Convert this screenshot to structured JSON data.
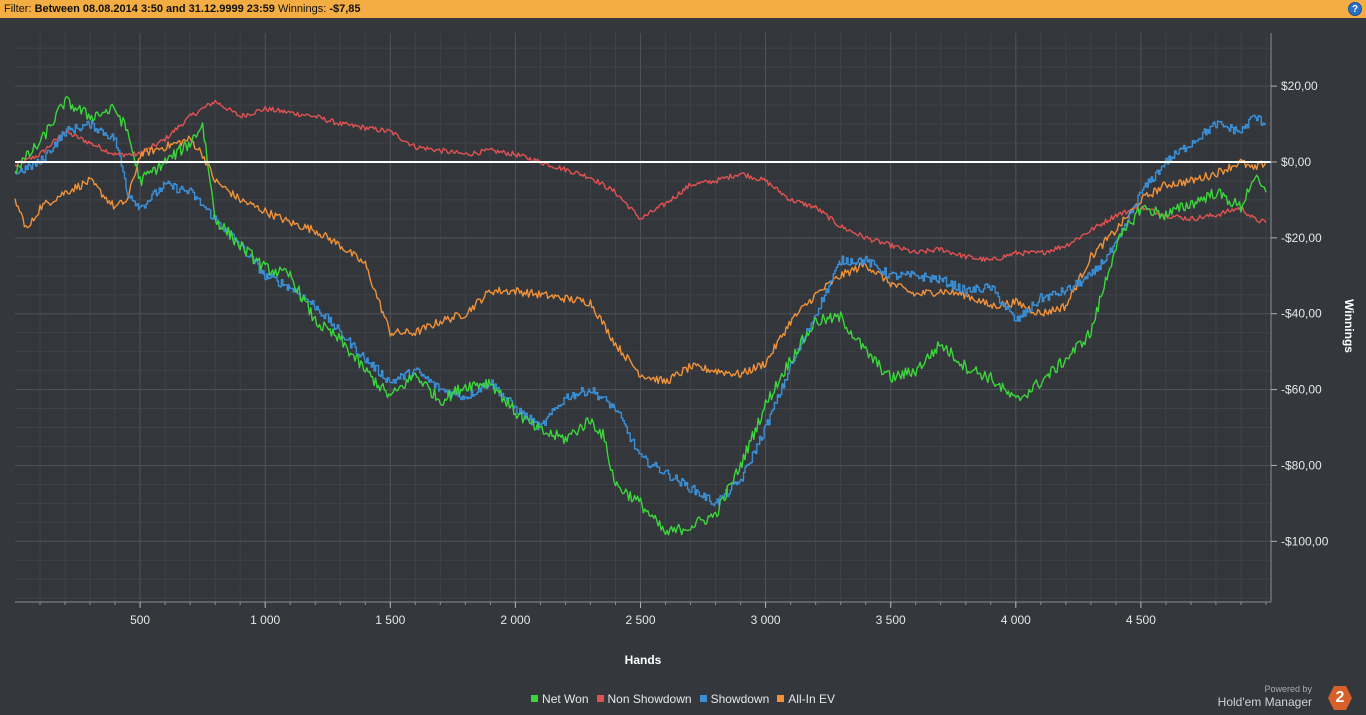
{
  "filter": {
    "prefix": "Filter:",
    "range": "Between 08.08.2014 3:50 and 31.12.9999 23:59",
    "winnings_label": "Winnings:",
    "winnings_value": "-$7,85"
  },
  "help_icon": "question-icon",
  "branding": {
    "powered": "Powered by",
    "product": "Hold'em Manager",
    "badge": "2"
  },
  "chart_data": {
    "type": "line",
    "xlabel": "Hands",
    "ylabel": "Winnings",
    "xlim": [
      0,
      5020
    ],
    "ylim": [
      -116,
      34
    ],
    "x_ticks": [
      500,
      1000,
      1500,
      2000,
      2500,
      3000,
      3500,
      4000,
      4500
    ],
    "x_tick_labels": [
      "500",
      "1 000",
      "1 500",
      "2 000",
      "2 500",
      "3 000",
      "3 500",
      "4 000",
      "4 500"
    ],
    "y_ticks": [
      20,
      0,
      -20,
      -40,
      -60,
      -80,
      -100
    ],
    "y_tick_labels": [
      "$20,00",
      "$0,00",
      "-$20,00",
      "-$40,00",
      "-$60,00",
      "-$80,00",
      "-$100,00"
    ],
    "grid": true,
    "legend_position": "bottom",
    "zero_line": true,
    "series": [
      {
        "name": "Net Won",
        "color": "#3bd63b",
        "x": [
          0,
          100,
          200,
          300,
          400,
          450,
          500,
          600,
          700,
          750,
          800,
          900,
          1000,
          1100,
          1200,
          1300,
          1400,
          1500,
          1600,
          1700,
          1800,
          1900,
          2000,
          2100,
          2200,
          2300,
          2350,
          2400,
          2500,
          2600,
          2700,
          2800,
          2900,
          3000,
          3100,
          3200,
          3300,
          3400,
          3500,
          3600,
          3700,
          3800,
          3900,
          4000,
          4100,
          4200,
          4300,
          4400,
          4500,
          4600,
          4700,
          4800,
          4900,
          4950,
          5000
        ],
        "y": [
          -2,
          5,
          16,
          12,
          14,
          8,
          -5,
          0,
          5,
          10,
          -15,
          -22,
          -28,
          -30,
          -42,
          -47,
          -55,
          -62,
          -56,
          -63,
          -59,
          -58,
          -66,
          -71,
          -73,
          -68,
          -72,
          -85,
          -90,
          -98,
          -96,
          -93,
          -80,
          -64,
          -52,
          -42,
          -41,
          -50,
          -57,
          -55,
          -48,
          -54,
          -57,
          -63,
          -58,
          -52,
          -45,
          -22,
          -12,
          -14,
          -11,
          -8,
          -12,
          -4,
          -8
        ]
      },
      {
        "name": "Non Showdown",
        "color": "#e05252",
        "x": [
          0,
          100,
          200,
          300,
          400,
          500,
          600,
          700,
          800,
          900,
          1000,
          1100,
          1200,
          1300,
          1400,
          1500,
          1600,
          1700,
          1800,
          1900,
          2000,
          2100,
          2200,
          2300,
          2400,
          2500,
          2600,
          2700,
          2800,
          2900,
          3000,
          3100,
          3200,
          3300,
          3400,
          3500,
          3600,
          3700,
          3800,
          3900,
          4000,
          4100,
          4200,
          4300,
          4400,
          4500,
          4600,
          4700,
          4800,
          4900,
          4950,
          5000
        ],
        "y": [
          -1,
          2,
          8,
          5,
          2,
          2,
          6,
          12,
          16,
          12,
          14,
          13,
          12,
          10,
          9,
          8,
          4,
          3,
          2,
          3,
          2,
          0,
          -2,
          -4,
          -8,
          -15,
          -11,
          -6,
          -5,
          -3,
          -5,
          -10,
          -12,
          -17,
          -20,
          -22,
          -24,
          -23,
          -25,
          -26,
          -24,
          -24,
          -22,
          -18,
          -14,
          -12,
          -14,
          -15,
          -14,
          -12,
          -15,
          -16
        ]
      },
      {
        "name": "Showdown",
        "color": "#3a8fd6",
        "x": [
          0,
          100,
          200,
          300,
          400,
          450,
          500,
          600,
          700,
          800,
          900,
          1000,
          1100,
          1200,
          1300,
          1400,
          1500,
          1600,
          1700,
          1800,
          1900,
          2000,
          2100,
          2200,
          2300,
          2400,
          2500,
          2600,
          2700,
          2800,
          2900,
          3000,
          3100,
          3200,
          3300,
          3400,
          3500,
          3600,
          3700,
          3800,
          3900,
          4000,
          4100,
          4200,
          4300,
          4400,
          4500,
          4600,
          4700,
          4800,
          4900,
          4950,
          5000
        ],
        "y": [
          -3,
          0,
          8,
          10,
          6,
          -8,
          -12,
          -6,
          -8,
          -15,
          -22,
          -30,
          -33,
          -38,
          -45,
          -52,
          -58,
          -55,
          -60,
          -62,
          -58,
          -65,
          -70,
          -62,
          -60,
          -65,
          -78,
          -82,
          -86,
          -90,
          -84,
          -70,
          -54,
          -40,
          -26,
          -26,
          -30,
          -30,
          -31,
          -34,
          -33,
          -42,
          -36,
          -34,
          -30,
          -22,
          -8,
          0,
          5,
          10,
          8,
          12,
          10
        ]
      },
      {
        "name": "All-In EV",
        "color": "#f0923a",
        "x": [
          0,
          50,
          100,
          200,
          300,
          400,
          450,
          500,
          600,
          700,
          750,
          800,
          900,
          1000,
          1100,
          1200,
          1300,
          1400,
          1500,
          1600,
          1700,
          1800,
          1900,
          2000,
          2100,
          2200,
          2300,
          2400,
          2500,
          2600,
          2700,
          2800,
          2900,
          3000,
          3100,
          3200,
          3300,
          3400,
          3500,
          3600,
          3700,
          3800,
          3900,
          4000,
          4100,
          4200,
          4300,
          4400,
          4500,
          4600,
          4700,
          4800,
          4900,
          4950,
          5000
        ],
        "y": [
          -10,
          -18,
          -12,
          -8,
          -5,
          -12,
          -10,
          2,
          4,
          6,
          2,
          -5,
          -10,
          -13,
          -16,
          -18,
          -22,
          -27,
          -45,
          -45,
          -42,
          -40,
          -34,
          -34,
          -35,
          -36,
          -37,
          -48,
          -56,
          -58,
          -54,
          -55,
          -56,
          -53,
          -42,
          -35,
          -30,
          -27,
          -32,
          -35,
          -34,
          -35,
          -38,
          -37,
          -40,
          -38,
          -25,
          -18,
          -10,
          -6,
          -5,
          -3,
          0,
          -2,
          0
        ]
      }
    ]
  }
}
